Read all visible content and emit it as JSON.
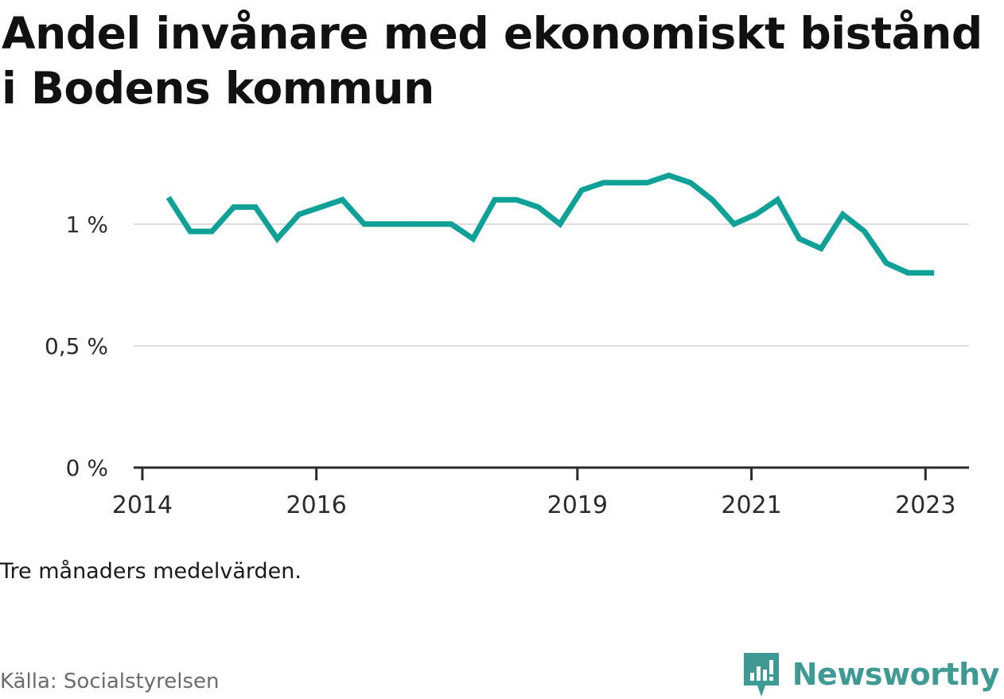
{
  "title": "Andel invånare med ekonomiskt bistånd i Bodens kommun",
  "note": "Tre månaders medelvärden.",
  "source": "Källa: Socialstyrelsen",
  "brand": {
    "name": "Newsworthy",
    "icon": "newsworthy-logo-icon",
    "color": "#3f9a94"
  },
  "chart_data": {
    "type": "line",
    "title": "Andel invånare med ekonomiskt bistånd i Bodens kommun",
    "xlabel": "",
    "ylabel": "",
    "color": "#0fa197",
    "grid": true,
    "ylim": [
      0,
      1.3
    ],
    "xlim": [
      2013.9,
      2023.5
    ],
    "y_ticks": [
      {
        "value": 0,
        "label": "0 %"
      },
      {
        "value": 0.5,
        "label": "0,5 %"
      },
      {
        "value": 1,
        "label": "1 %"
      }
    ],
    "x_ticks": [
      {
        "value": 2014,
        "label": "2014"
      },
      {
        "value": 2016,
        "label": "2016"
      },
      {
        "value": 2019,
        "label": "2019"
      },
      {
        "value": 2021,
        "label": "2021"
      },
      {
        "value": 2023,
        "label": "2023"
      }
    ],
    "series": [
      {
        "x": [
          2014.3,
          2014.55,
          2014.8,
          2015.05,
          2015.3,
          2015.55,
          2015.8,
          2016.05,
          2016.3,
          2016.55,
          2016.8,
          2017.05,
          2017.3,
          2017.55,
          2017.8,
          2018.05,
          2018.3,
          2018.55,
          2018.8,
          2019.05,
          2019.3,
          2019.55,
          2019.8,
          2020.05,
          2020.3,
          2020.55,
          2020.8,
          2021.05,
          2021.3,
          2021.55,
          2021.8,
          2022.05,
          2022.3,
          2022.55,
          2022.8,
          2023.1
        ],
        "values": [
          1.11,
          0.97,
          0.97,
          1.07,
          1.07,
          0.94,
          1.04,
          1.07,
          1.1,
          1.0,
          1.0,
          1.0,
          1.0,
          1.0,
          0.94,
          1.1,
          1.1,
          1.07,
          1.0,
          1.14,
          1.17,
          1.17,
          1.17,
          1.2,
          1.17,
          1.1,
          1.0,
          1.04,
          1.1,
          0.94,
          0.9,
          1.04,
          0.97,
          0.84,
          0.8,
          0.8
        ]
      }
    ]
  }
}
